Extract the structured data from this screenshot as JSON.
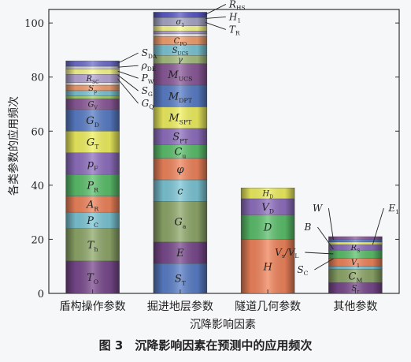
{
  "chart_data": {
    "type": "bar",
    "stacked": true,
    "categories": [
      "盾构操作参数",
      "掘进地层参数",
      "隧道几何参数",
      "其他参数"
    ],
    "xlabel": "沉降影响因素",
    "ylabel": "各类参数的应用频次",
    "ylim": [
      0,
      105
    ],
    "yticks": [
      0,
      20,
      40,
      60,
      80,
      100
    ],
    "stacks": [
      {
        "category": "盾构操作参数",
        "segments": [
          {
            "label": "T",
            "sub": "O",
            "value": 12,
            "color": "#7a4a8e"
          },
          {
            "label": "T",
            "sub": "h",
            "value": 12,
            "color": "#8fa86a"
          },
          {
            "label": "P",
            "sub": "C",
            "value": 6,
            "color": "#7dc6d6"
          },
          {
            "label": "A",
            "sub": "R",
            "value": 6,
            "color": "#f0845c"
          },
          {
            "label": "P",
            "sub": "R",
            "value": 8,
            "color": "#5cc06c"
          },
          {
            "label": "p",
            "sub": "F",
            "value": 8,
            "color": "#9070c0"
          },
          {
            "label": "G",
            "sub": "T",
            "value": 8,
            "color": "#f0f060"
          },
          {
            "label": "G",
            "sub": "D",
            "value": 8,
            "color": "#5a7ec8"
          },
          {
            "label": "G",
            "sub": "V",
            "value": 4,
            "color": "#8c5a9a"
          },
          {
            "label": "",
            "sub": "",
            "value": 1,
            "color": "#a8d070"
          },
          {
            "label": "",
            "sub": "",
            "value": 2,
            "color": "#7dc6d6"
          },
          {
            "label": "S",
            "sub": "p",
            "value": 2,
            "color": "#f4a070"
          },
          {
            "label": "",
            "sub": "",
            "value": 1,
            "color": "#f8f8f8"
          },
          {
            "label": "R",
            "sub": "SC",
            "value": 3,
            "color": "#b8a8d8"
          },
          {
            "label": "",
            "sub": "",
            "value": 2,
            "color": "#fafa90"
          },
          {
            "label": "",
            "sub": "",
            "value": 1,
            "color": "#d8d8e8"
          },
          {
            "label": "",
            "sub": "",
            "value": 2,
            "color": "#6f6fcf"
          }
        ],
        "callouts": [
          {
            "label": "S",
            "sub": "DA"
          },
          {
            "label": "ρ",
            "sub": "DE"
          },
          {
            "label": "P",
            "sub": "W"
          },
          {
            "label": "S",
            "sub": "G"
          },
          {
            "label": "G",
            "sub": "Q"
          }
        ]
      },
      {
        "category": "掘进地层参数",
        "segments": [
          {
            "label": "S",
            "sub": "T",
            "value": 11,
            "color": "#5a7ec8"
          },
          {
            "label": "E",
            "sub": "",
            "value": 8,
            "color": "#7a4a8e"
          },
          {
            "label": "G",
            "sub": "a",
            "value": 15,
            "color": "#8fa86a"
          },
          {
            "label": "c",
            "sub": "",
            "value": 8,
            "color": "#7dc6d6"
          },
          {
            "label": "φ",
            "sub": "",
            "value": 8,
            "color": "#f0845c"
          },
          {
            "label": "C",
            "sub": "u",
            "value": 5,
            "color": "#5cc06c"
          },
          {
            "label": "S",
            "sub": "PT",
            "value": 6,
            "color": "#9070c0"
          },
          {
            "label": "M",
            "sub": "SPT",
            "value": 8,
            "color": "#f0f060"
          },
          {
            "label": "M",
            "sub": "DPT",
            "value": 8,
            "color": "#5a7ec8"
          },
          {
            "label": "M",
            "sub": "UCS",
            "value": 8,
            "color": "#8c5a9a"
          },
          {
            "label": "γ",
            "sub": "",
            "value": 3,
            "color": "#a8c080"
          },
          {
            "label": "S",
            "sub": "UCS",
            "value": 4,
            "color": "#7dc6d6"
          },
          {
            "label": "C",
            "sub": "PO",
            "value": 3,
            "color": "#f4a070"
          },
          {
            "label": "",
            "sub": "",
            "value": 1,
            "color": "#f0f0f0"
          },
          {
            "label": "",
            "sub": "",
            "value": 1,
            "color": "#b8a8d8"
          },
          {
            "label": "",
            "sub": "",
            "value": 2,
            "color": "#fafa90"
          },
          {
            "label": "σ",
            "sub": "1",
            "value": 3,
            "color": "#a8a8c8"
          },
          {
            "label": "",
            "sub": "",
            "value": 2,
            "color": "#5a5ac8"
          }
        ],
        "callouts": [
          {
            "label": "R",
            "sub": "HS"
          },
          {
            "label": "H",
            "sub": "1"
          },
          {
            "label": "T",
            "sub": "R"
          }
        ]
      },
      {
        "category": "隧道几何参数",
        "segments": [
          {
            "label": "H",
            "sub": "",
            "value": 20,
            "color": "#f0845c"
          },
          {
            "label": "D",
            "sub": "",
            "value": 9,
            "color": "#5cc06c"
          },
          {
            "label": "V",
            "sub": "D",
            "value": 6,
            "color": "#9070c0"
          },
          {
            "label": "H",
            "sub": "D",
            "value": 4,
            "color": "#f0f060"
          }
        ],
        "callouts": []
      },
      {
        "category": "其他参数",
        "segments": [
          {
            "label": "S",
            "sub": "r",
            "value": 4,
            "color": "#7a4a8e"
          },
          {
            "label": "C",
            "sub": "M",
            "value": 5,
            "color": "#8fa86a"
          },
          {
            "label": "",
            "sub": "",
            "value": 1,
            "color": "#7dc6d6"
          },
          {
            "label": "V",
            "sub": "1",
            "value": 3,
            "color": "#f0845c"
          },
          {
            "label": "",
            "sub": "",
            "value": 3,
            "color": "#5cc06c"
          },
          {
            "label": "R",
            "sub": "S",
            "value": 2,
            "color": "#9070c0"
          },
          {
            "label": "",
            "sub": "",
            "value": 1,
            "color": "#f0f060"
          },
          {
            "label": "",
            "sub": "",
            "value": 1,
            "color": "#5a7ec8"
          },
          {
            "label": "",
            "sub": "",
            "value": 1,
            "color": "#8c5a9a"
          }
        ],
        "callouts": [
          {
            "label": "W",
            "sub": ""
          },
          {
            "label": "E",
            "sub": "1"
          },
          {
            "label": "B",
            "sub": ""
          },
          {
            "label": "V",
            "sub": "s",
            "suffix": "/V",
            "sub2": "L"
          },
          {
            "label": "S",
            "sub": "C"
          }
        ]
      }
    ]
  },
  "caption": "图 3　沉降影响因素在预测中的应用频次"
}
